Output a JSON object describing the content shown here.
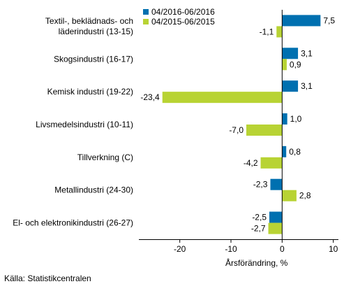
{
  "chart_data": {
    "type": "bar",
    "orientation": "horizontal",
    "categories": [
      [
        "Textil-, beklädnads- och",
        "läderindustri (13-15)"
      ],
      [
        "Skogsindustri (16-17)"
      ],
      [
        "Kemisk industri (19-22)"
      ],
      [
        "Livsmedelsindustri (10-11)"
      ],
      [
        "Tillverkning (C)"
      ],
      [
        "Metallindustri (24-30)"
      ],
      [
        "El- och elektronikindustri (26-27)"
      ]
    ],
    "series": [
      {
        "name": "04/2016-06/2016",
        "color": "#0070b0",
        "values": [
          7.5,
          3.1,
          3.1,
          1.0,
          0.8,
          -2.3,
          -2.5
        ],
        "labels": [
          "7,5",
          "3,1",
          "3,1",
          "1,0",
          "0,8",
          "-2,3",
          "-2,5"
        ]
      },
      {
        "name": "04/2015-06/2015",
        "color": "#b8d334",
        "values": [
          -1.1,
          0.9,
          -23.4,
          -7.0,
          -4.2,
          2.8,
          -2.7
        ],
        "labels": [
          "-1,1",
          "0,9",
          "-23,4",
          "-7,0",
          "-4,2",
          "2,8",
          "-2,7"
        ]
      }
    ],
    "xlabel": "Årsförändring, %",
    "xlim": [
      -28,
      11
    ],
    "xticks": [
      -20,
      -10,
      0,
      10
    ],
    "xtick_labels": [
      "-20",
      "-10",
      "0",
      "10"
    ],
    "grid": false,
    "legend_position": "top"
  },
  "source": "Källa: Statistikcentralen"
}
